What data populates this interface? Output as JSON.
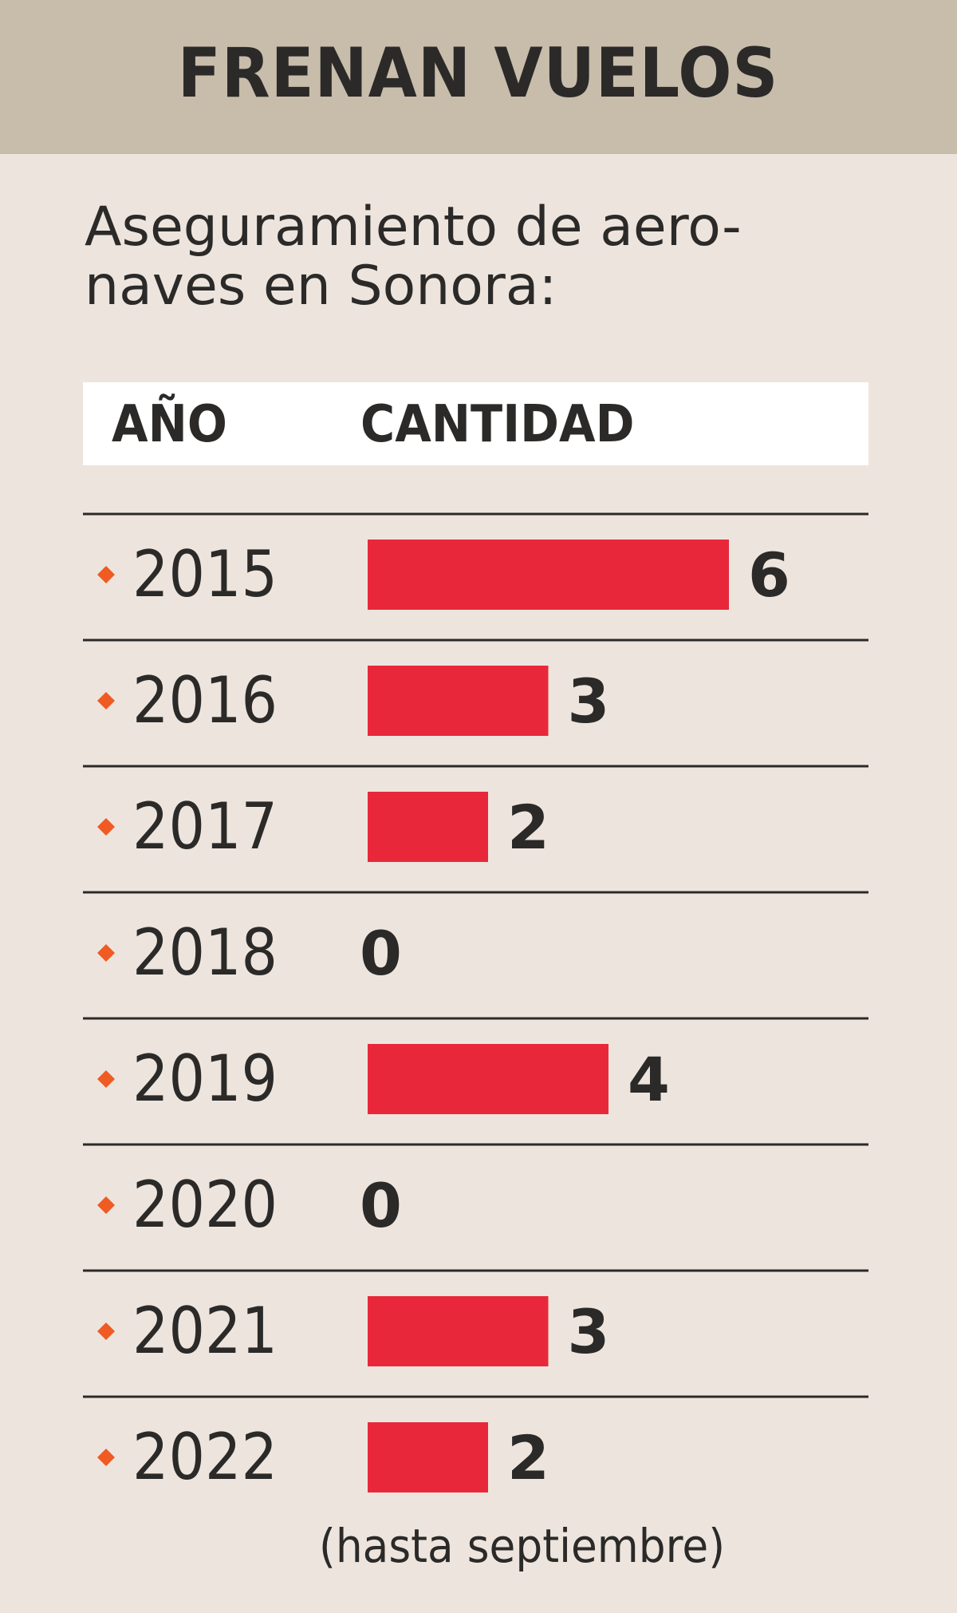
{
  "header": {
    "title": "FRENAN VUELOS"
  },
  "subtitle": {
    "line1": "Aseguramiento de aero-",
    "line2": "naves en Sonora:"
  },
  "columns": {
    "year": "AÑO",
    "quantity": "CANTIDAD"
  },
  "note": "(hasta septiembre)",
  "colors": {
    "header_bg": "#c8bcab",
    "page_bg": "#ede5dd",
    "bar": "#e8283a",
    "bullet": "#f05a23",
    "text": "#2b2a29"
  },
  "chart_data": {
    "type": "bar",
    "orientation": "horizontal",
    "title": "FRENAN VUELOS",
    "subtitle": "Aseguramiento de aeronaves en Sonora:",
    "xlabel": "CANTIDAD",
    "ylabel": "AÑO",
    "categories": [
      "2015",
      "2016",
      "2017",
      "2018",
      "2019",
      "2020",
      "2021",
      "2022"
    ],
    "values": [
      6,
      3,
      2,
      0,
      4,
      0,
      3,
      2
    ],
    "xlim": [
      0,
      6
    ],
    "grid": false,
    "annotation": "(hasta septiembre)"
  }
}
